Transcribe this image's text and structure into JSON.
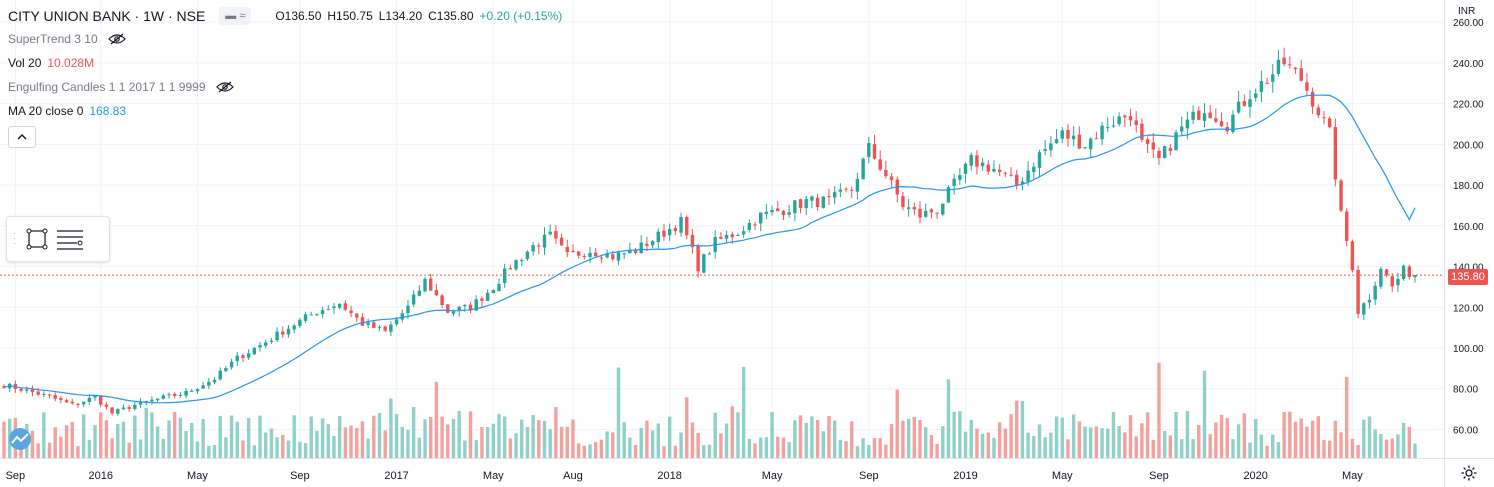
{
  "header": {
    "symbol": "CITY UNION BANK · 1W · NSE",
    "open": "O136.50",
    "high": "H150.75",
    "low": "L134.20",
    "close": "C135.80",
    "change": "+0.20 (+0.15%)"
  },
  "indicators": [
    {
      "name": "SuperTrend 3 10",
      "value": "",
      "icon": "eye-crossed-icon"
    },
    {
      "name": "Vol 20",
      "value": "10.028M",
      "icon": ""
    },
    {
      "name": "Engulfing Candles 1 1 2017 1 1 9999",
      "value": "",
      "icon": "eye-crossed-icon"
    },
    {
      "name": "MA 20 close 0",
      "value": "168.83",
      "icon": ""
    }
  ],
  "currency": "INR",
  "last_price_label": "135.80",
  "colors": {
    "up": "#26a69a",
    "down": "#ef5350",
    "vol_up": "#8fd1c9",
    "vol_down": "#f4a19e",
    "ma": "#2196f3",
    "grid": "#f0f3fa"
  },
  "chart_data": {
    "type": "candlestick",
    "title": "CITY UNION BANK · 1W · NSE",
    "y_ticks": [
      60,
      80,
      100,
      120,
      140,
      160,
      180,
      200,
      220,
      240,
      260
    ],
    "y_tick_labels": [
      "60.00",
      "80.00",
      "100.00",
      "120.00",
      "140.00",
      "160.00",
      "180.00",
      "200.00",
      "220.00",
      "240.00",
      "260.00"
    ],
    "ylim": [
      46,
      263
    ],
    "x_labels": [
      {
        "label": "Sep",
        "index": 2
      },
      {
        "label": "2016",
        "index": 17
      },
      {
        "label": "May",
        "index": 34
      },
      {
        "label": "Sep",
        "index": 52
      },
      {
        "label": "2017",
        "index": 69
      },
      {
        "label": "May",
        "index": 86
      },
      {
        "label": "Aug",
        "index": 100
      },
      {
        "label": "2018",
        "index": 117
      },
      {
        "label": "May",
        "index": 135
      },
      {
        "label": "Sep",
        "index": 152
      },
      {
        "label": "2019",
        "index": 169
      },
      {
        "label": "May",
        "index": 186
      },
      {
        "label": "Sep",
        "index": 203
      },
      {
        "label": "2020",
        "index": 220
      },
      {
        "label": "May",
        "index": 237
      }
    ],
    "price_anchors": [
      [
        0,
        82
      ],
      [
        4,
        79
      ],
      [
        8,
        76
      ],
      [
        12,
        72
      ],
      [
        16,
        76
      ],
      [
        19,
        68
      ],
      [
        23,
        72
      ],
      [
        27,
        75
      ],
      [
        32,
        78
      ],
      [
        37,
        85
      ],
      [
        41,
        95
      ],
      [
        46,
        103
      ],
      [
        50,
        110
      ],
      [
        55,
        118
      ],
      [
        59,
        122
      ],
      [
        63,
        112
      ],
      [
        67,
        108
      ],
      [
        71,
        120
      ],
      [
        74,
        133
      ],
      [
        78,
        118
      ],
      [
        82,
        120
      ],
      [
        86,
        130
      ],
      [
        89,
        140
      ],
      [
        93,
        150
      ],
      [
        96,
        155
      ],
      [
        99,
        145
      ],
      [
        103,
        148
      ],
      [
        107,
        145
      ],
      [
        111,
        148
      ],
      [
        115,
        155
      ],
      [
        119,
        162
      ],
      [
        122,
        140
      ],
      [
        125,
        152
      ],
      [
        129,
        157
      ],
      [
        133,
        165
      ],
      [
        137,
        168
      ],
      [
        141,
        172
      ],
      [
        145,
        172
      ],
      [
        149,
        178
      ],
      [
        152,
        198
      ],
      [
        155,
        185
      ],
      [
        158,
        170
      ],
      [
        161,
        165
      ],
      [
        164,
        168
      ],
      [
        167,
        180
      ],
      [
        170,
        192
      ],
      [
        174,
        188
      ],
      [
        178,
        180
      ],
      [
        182,
        195
      ],
      [
        186,
        205
      ],
      [
        190,
        200
      ],
      [
        194,
        210
      ],
      [
        198,
        215
      ],
      [
        200,
        200
      ],
      [
        203,
        192
      ],
      [
        207,
        208
      ],
      [
        211,
        218
      ],
      [
        215,
        210
      ],
      [
        219,
        225
      ],
      [
        222,
        232
      ],
      [
        225,
        240
      ],
      [
        228,
        232
      ],
      [
        230,
        222
      ],
      [
        233,
        205
      ],
      [
        235,
        165
      ],
      [
        237,
        140
      ],
      [
        238,
        118
      ],
      [
        240,
        125
      ],
      [
        242,
        140
      ],
      [
        244,
        130
      ],
      [
        246,
        138
      ],
      [
        248,
        135.8
      ]
    ],
    "volume_axis": {
      "min": 46,
      "max": 104
    },
    "ma": {
      "name": "MA 20 close 0",
      "last_value": 168.83
    },
    "last_price": 135.8
  }
}
